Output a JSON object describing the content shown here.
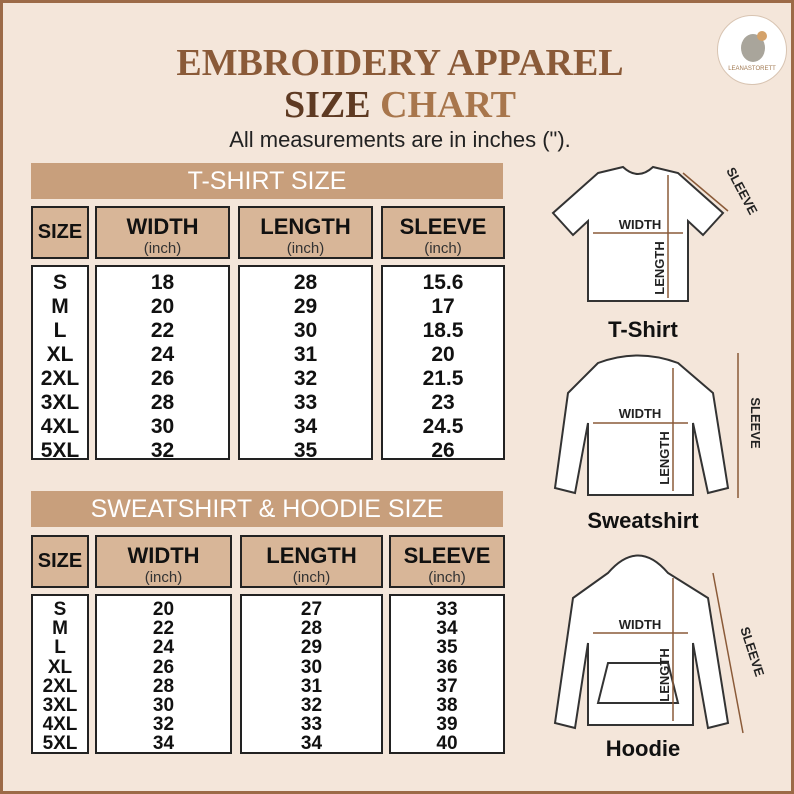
{
  "logo": "LEANASTORETT",
  "title": {
    "line1": "EMBROIDERY APPAREL",
    "line2_a": "SIZE",
    "line2_b": "CHART"
  },
  "subtitle": "All measurements are in inches (\").",
  "tables": [
    {
      "heading": "T-SHIRT SIZE",
      "size_header": "SIZE",
      "columns": [
        {
          "name": "WIDTH",
          "unit": "(inch)"
        },
        {
          "name": "LENGTH",
          "unit": "(inch)"
        },
        {
          "name": "SLEEVE",
          "unit": "(inch)"
        }
      ],
      "sizes": [
        "S",
        "M",
        "L",
        "XL",
        "2XL",
        "3XL",
        "4XL",
        "5XL"
      ],
      "values": [
        [
          "18",
          "20",
          "22",
          "24",
          "26",
          "28",
          "30",
          "32"
        ],
        [
          "28",
          "29",
          "30",
          "31",
          "32",
          "33",
          "34",
          "35"
        ],
        [
          "15.6",
          "17",
          "18.5",
          "20",
          "21.5",
          "23",
          "24.5",
          "26"
        ]
      ]
    },
    {
      "heading": "SWEATSHIRT & HOODIE SIZE",
      "size_header": "SIZE",
      "columns": [
        {
          "name": "WIDTH",
          "unit": "(inch)"
        },
        {
          "name": "LENGTH",
          "unit": "(inch)"
        },
        {
          "name": "SLEEVE",
          "unit": "(inch)"
        }
      ],
      "sizes": [
        "S",
        "M",
        "L",
        "XL",
        "2XL",
        "3XL",
        "4XL",
        "5XL"
      ],
      "values": [
        [
          "20",
          "22",
          "24",
          "26",
          "28",
          "30",
          "32",
          "34"
        ],
        [
          "27",
          "28",
          "29",
          "30",
          "31",
          "32",
          "33",
          "34"
        ],
        [
          "33",
          "34",
          "35",
          "36",
          "37",
          "38",
          "39",
          "40"
        ]
      ]
    }
  ],
  "garments": [
    {
      "name": "T-Shirt",
      "width": "WIDTH",
      "length": "LENGTH",
      "sleeve": "SLEEVE"
    },
    {
      "name": "Sweatshirt",
      "width": "WIDTH",
      "length": "LENGTH",
      "sleeve": "SLEEVE"
    },
    {
      "name": "Hoodie",
      "width": "WIDTH",
      "length": "LENGTH",
      "sleeve": "SLEEVE"
    }
  ]
}
